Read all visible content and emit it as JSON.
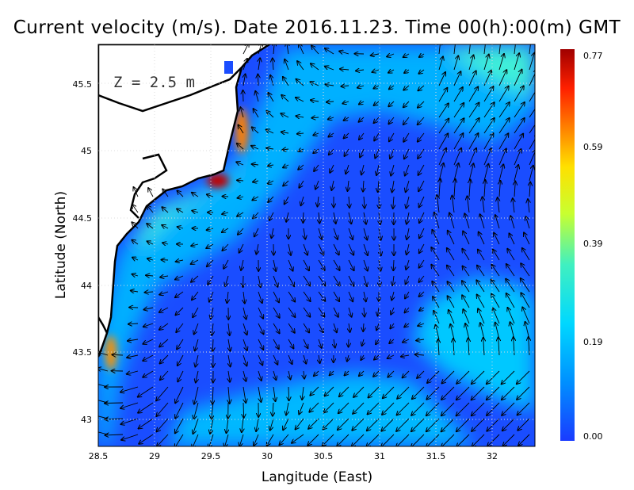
{
  "title": "Current velocity (m/s). Date 2016.11.23. Time 00(h):00(m) GMT",
  "depth_label": "Z = 2.5 m",
  "x_axis": {
    "label": "Langitude (East)",
    "ticks": [
      "28.5",
      "29",
      "29.5",
      "30",
      "30.5",
      "31",
      "31.5",
      "32"
    ]
  },
  "y_axis": {
    "label": "Latitude (North)",
    "ticks": [
      "45.5",
      "45",
      "44.5",
      "44",
      "43.5",
      "43"
    ]
  },
  "colorbar": {
    "ticks": [
      "0.77",
      "0.59",
      "0.39",
      "0.19",
      "0.00"
    ],
    "colors": [
      "#1a3bff",
      "#0090ff",
      "#00d8ff",
      "#40f0c0",
      "#c8ff30",
      "#ffe000",
      "#ff8000",
      "#ff2000",
      "#a00000"
    ]
  },
  "map_data": {
    "lon_range": [
      28.5,
      32.4
    ],
    "lat_range": [
      42.8,
      45.8
    ],
    "colors": {
      "land": "#ffffff",
      "coast": "#000000",
      "sea_low": "#1a4dff",
      "sea_mid": "#00a8ff",
      "sea_high": "#40f0d8",
      "jet": "#ff3000"
    }
  }
}
